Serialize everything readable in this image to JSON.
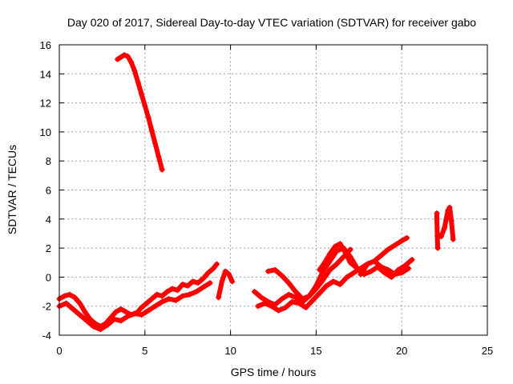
{
  "chart_data": {
    "type": "scatter",
    "title": "Day 020 of 2017, Sidereal Day-to-day VTEC variation (SDTVAR) for receiver gabo",
    "xlabel": "GPS time / hours",
    "ylabel": "SDTVAR / TECUs",
    "xlim": [
      0,
      25
    ],
    "ylim": [
      -4,
      16
    ],
    "xticks": [
      0,
      5,
      10,
      15,
      20,
      25
    ],
    "yticks": [
      -4,
      -2,
      0,
      2,
      4,
      6,
      8,
      10,
      12,
      14,
      16
    ],
    "grid": true,
    "marker": "plus",
    "color": "#ff0000",
    "series": [
      {
        "x": [
          3.4,
          3.8,
          4.0,
          4.2,
          4.4,
          4.6,
          4.8,
          5.0,
          5.2,
          5.4,
          5.6,
          5.8,
          6.0
        ],
        "y": [
          15.0,
          15.3,
          15.2,
          14.8,
          14.2,
          13.4,
          12.6,
          11.8,
          11.0,
          10.1,
          9.2,
          8.3,
          7.4
        ]
      },
      {
        "x": [
          0.0,
          0.3,
          0.6,
          0.9,
          1.2,
          1.5,
          1.8,
          2.1,
          2.4,
          2.7,
          3.0,
          3.3,
          3.6,
          3.9,
          4.2,
          4.5,
          4.8,
          5.1,
          5.4,
          5.7,
          6.0,
          6.3,
          6.6,
          6.9,
          7.2,
          7.5,
          7.8,
          8.1,
          8.4,
          8.7,
          9.0,
          9.2
        ],
        "y": [
          -1.5,
          -1.3,
          -1.2,
          -1.4,
          -1.8,
          -2.4,
          -2.9,
          -3.2,
          -3.4,
          -3.2,
          -2.8,
          -2.4,
          -2.2,
          -2.4,
          -2.6,
          -2.5,
          -2.1,
          -1.8,
          -1.5,
          -1.2,
          -1.3,
          -1.0,
          -0.8,
          -0.9,
          -0.5,
          -0.6,
          -0.3,
          -0.4,
          -0.1,
          0.3,
          0.6,
          0.9
        ]
      },
      {
        "x": [
          0.0,
          0.4,
          0.8,
          1.2,
          1.6,
          2.0,
          2.4,
          2.8,
          3.2,
          3.6,
          4.0,
          4.4,
          4.8,
          5.2,
          5.6,
          6.0,
          6.4,
          6.8,
          7.2,
          7.6,
          8.0,
          8.4,
          8.8
        ],
        "y": [
          -2.0,
          -1.8,
          -2.2,
          -2.6,
          -3.0,
          -3.4,
          -3.6,
          -3.3,
          -2.9,
          -3.0,
          -2.7,
          -2.5,
          -2.6,
          -2.3,
          -2.0,
          -1.7,
          -1.5,
          -1.6,
          -1.3,
          -1.2,
          -1.0,
          -0.7,
          -0.4
        ]
      },
      {
        "x": [
          9.3,
          9.5,
          9.7,
          9.9,
          10.1
        ],
        "y": [
          -1.4,
          -0.3,
          0.4,
          0.2,
          -0.3
        ]
      },
      {
        "x": [
          11.4,
          11.8,
          12.2,
          12.6,
          13.0,
          13.4,
          13.8,
          14.2,
          14.6,
          15.0,
          15.4,
          15.8,
          16.2,
          16.6,
          17.0
        ],
        "y": [
          -1.0,
          -1.4,
          -1.7,
          -1.9,
          -1.5,
          -1.2,
          -1.4,
          -1.7,
          -1.3,
          -0.8,
          -0.2,
          0.5,
          0.9,
          1.4,
          1.9
        ]
      },
      {
        "x": [
          11.6,
          12.0,
          12.4,
          12.8,
          13.2,
          13.6,
          14.0,
          14.4,
          14.8,
          15.2,
          15.6,
          16.0,
          16.4,
          16.8,
          17.2,
          17.6,
          18.0,
          18.4,
          18.8,
          19.2,
          19.6,
          20.0,
          20.3
        ],
        "y": [
          -2.0,
          -1.8,
          -2.0,
          -2.3,
          -2.1,
          -1.7,
          -1.8,
          -2.1,
          -1.6,
          -1.1,
          -0.6,
          -0.3,
          -0.5,
          0.0,
          0.3,
          0.6,
          0.9,
          1.1,
          1.5,
          1.9,
          2.2,
          2.5,
          2.7
        ]
      },
      {
        "x": [
          12.2,
          12.6,
          13.0,
          13.4,
          13.8,
          14.2,
          14.6,
          15.0,
          15.4,
          15.8,
          16.2,
          16.6,
          17.0,
          17.4
        ],
        "y": [
          0.4,
          0.5,
          0.1,
          -0.4,
          -1.0,
          -1.5,
          -1.3,
          -0.6,
          0.4,
          1.1,
          1.8,
          2.0,
          1.4,
          0.6
        ]
      },
      {
        "x": [
          15.2,
          15.5,
          15.8,
          16.1,
          16.4,
          16.7,
          17.0,
          17.4,
          17.8,
          18.2,
          18.6,
          19.0,
          19.4,
          19.8,
          20.2,
          20.6
        ],
        "y": [
          0.5,
          1.0,
          1.6,
          2.1,
          2.3,
          1.7,
          1.0,
          0.6,
          0.2,
          0.4,
          0.7,
          0.3,
          0.0,
          0.5,
          0.8,
          1.2
        ]
      },
      {
        "x": [
          17.6,
          18.0,
          18.4,
          18.8,
          19.2,
          19.6,
          20.0,
          20.4
        ],
        "y": [
          0.2,
          0.9,
          1.1,
          0.7,
          0.5,
          0.2,
          0.3,
          0.6
        ]
      },
      {
        "x": [
          22.3,
          22.5,
          22.6,
          22.7,
          22.8,
          22.9,
          23.0
        ],
        "y": [
          2.8,
          3.4,
          4.0,
          4.6,
          4.8,
          3.9,
          2.6
        ]
      },
      {
        "x": [
          22.05,
          22.05,
          22.08,
          22.1
        ],
        "y": [
          4.4,
          4.0,
          2.8,
          2.0
        ]
      }
    ]
  }
}
